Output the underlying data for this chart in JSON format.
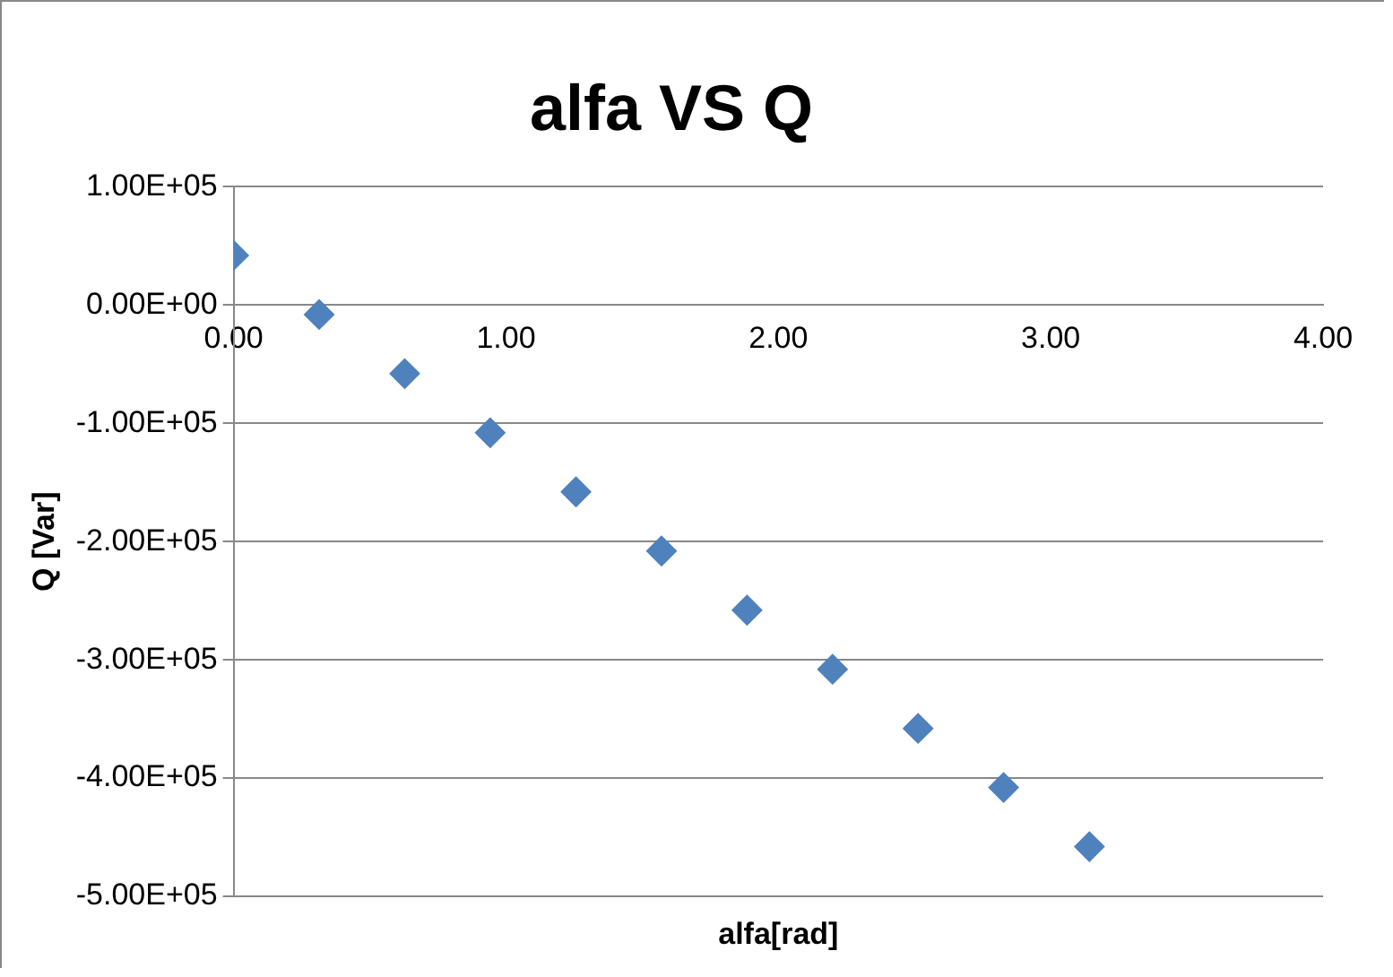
{
  "chart_data": {
    "type": "scatter",
    "title": "alfa VS Q",
    "xlabel": "alfa[rad]",
    "ylabel": "Q [Var]",
    "x": [
      0,
      0.314,
      0.628,
      0.942,
      1.257,
      1.571,
      1.885,
      2.199,
      2.513,
      2.827,
      3.142
    ],
    "series": [
      {
        "color": "#4f81bd",
        "values": [
          42000,
          -8000,
          -58000,
          -108000,
          -158000,
          -208000,
          -258000,
          -308000,
          -358000,
          -408000,
          -458000
        ]
      }
    ],
    "xlim": [
      0,
      4
    ],
    "xticks": [
      {
        "value": 0,
        "label": "0.00"
      },
      {
        "value": 1,
        "label": "1.00"
      },
      {
        "value": 2,
        "label": "2.00"
      },
      {
        "value": 3,
        "label": "3.00"
      },
      {
        "value": 4,
        "label": "4.00"
      }
    ],
    "ylim": [
      -500000,
      100000
    ],
    "yticks": [
      {
        "value": 100000,
        "label": "1.00E+05"
      },
      {
        "value": 0,
        "label": "0.00E+00"
      },
      {
        "value": -100000,
        "label": "-1.00E+05"
      },
      {
        "value": -200000,
        "label": "-2.00E+05"
      },
      {
        "value": -300000,
        "label": "-3.00E+05"
      },
      {
        "value": -400000,
        "label": "-4.00E+05"
      },
      {
        "value": -500000,
        "label": "-5.00E+05"
      }
    ],
    "grid": "y",
    "legend": false,
    "marker": "diamond"
  }
}
